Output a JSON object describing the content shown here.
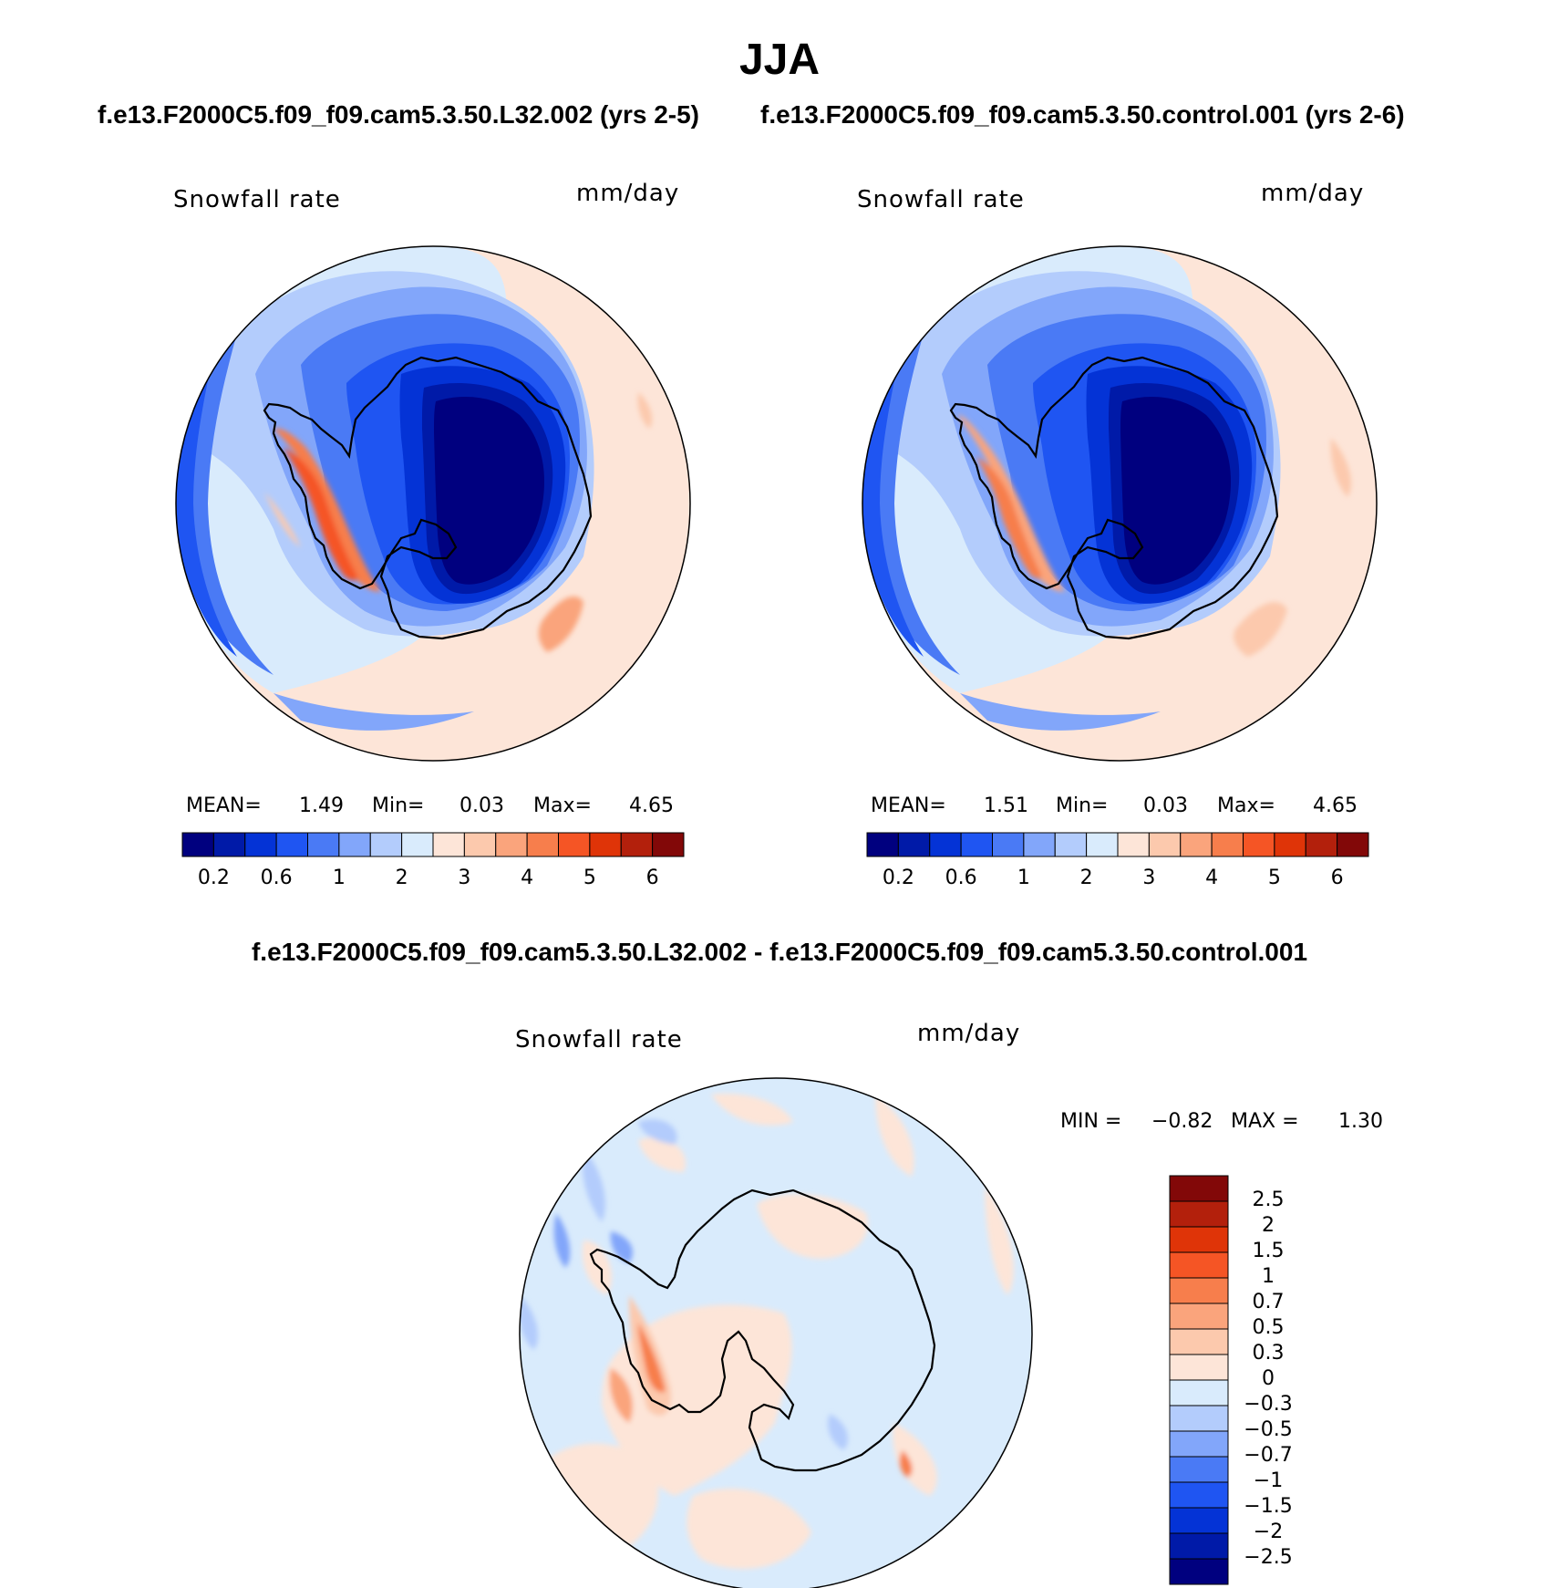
{
  "title": "JJA",
  "panels": [
    {
      "case_title": "f.e13.F2000C5.f09_f09.cam5.3.50.L32.002 (yrs 2-5)",
      "variable": "Snowfall rate",
      "units": "mm/day",
      "stats": {
        "mean_label": "MEAN=",
        "mean": "1.49",
        "min_label": "Min=",
        "min": "0.03",
        "max_label": "Max=",
        "max": "4.65"
      },
      "colorbar_ticks": [
        "0.2",
        "0.6",
        "1",
        "2",
        "3",
        "4",
        "5",
        "6"
      ]
    },
    {
      "case_title": "f.e13.F2000C5.f09_f09.cam5.3.50.control.001 (yrs 2-6)",
      "variable": "Snowfall rate",
      "units": "mm/day",
      "stats": {
        "mean_label": "MEAN=",
        "mean": "1.51",
        "min_label": "Min=",
        "min": "0.03",
        "max_label": "Max=",
        "max": "4.65"
      },
      "colorbar_ticks": [
        "0.2",
        "0.6",
        "1",
        "2",
        "3",
        "4",
        "5",
        "6"
      ]
    }
  ],
  "diff_panel": {
    "title": "f.e13.F2000C5.f09_f09.cam5.3.50.L32.002 - f.e13.F2000C5.f09_f09.cam5.3.50.control.001",
    "variable": "Snowfall rate",
    "units": "mm/day",
    "stats": {
      "min_label": "MIN =",
      "min": "−0.82",
      "max_label": "MAX =",
      "max": "1.30"
    },
    "colorbar_labels": [
      "2.5",
      "2",
      "1.5",
      "1",
      "0.7",
      "0.5",
      "0.3",
      "0",
      "−0.3",
      "−0.5",
      "−0.7",
      "−1",
      "−1.5",
      "−2",
      "−2.5"
    ]
  },
  "colors": {
    "abs_scale": [
      "#00007f",
      "#001aa8",
      "#0433d6",
      "#1f55f2",
      "#4a7af5",
      "#82a6fa",
      "#b3ccfc",
      "#d9ebfc",
      "#fde5d8",
      "#fcc9ad",
      "#faa47c",
      "#f77e4c",
      "#f55525",
      "#df3408",
      "#b3200c",
      "#820808"
    ],
    "diff_scale": [
      "#00007f",
      "#001aa8",
      "#0433d6",
      "#1f55f2",
      "#4a7af5",
      "#82a6fa",
      "#b3ccfc",
      "#d9ebfc",
      "#fde5d8",
      "#fcc9ad",
      "#faa47c",
      "#f77e4c",
      "#f55525",
      "#df3408",
      "#b3200c",
      "#820808"
    ]
  }
}
